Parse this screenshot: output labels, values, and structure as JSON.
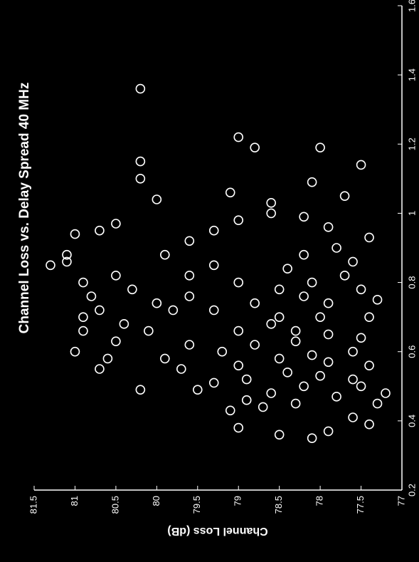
{
  "chart_data": {
    "type": "scatter",
    "title": "Channel Loss vs. Delay Spread 40 MHz",
    "y_label": "Channel Loss (dB)",
    "color": "#ffffff",
    "xlim": [
      0.2,
      1.6
    ],
    "xticks": [
      0.2,
      0.4,
      0.6,
      0.8,
      1,
      1.2,
      1.4,
      1.6
    ],
    "ylim": [
      77,
      81.5
    ],
    "yticks": [
      77,
      77.5,
      78,
      78.5,
      79,
      79.5,
      80,
      80.5,
      81,
      81.5
    ],
    "x": [
      1.36,
      1.15,
      1.1,
      1.22,
      1.19,
      1.19,
      1.14,
      1.09,
      1.05,
      1.06,
      1.03,
      1.04,
      0.97,
      0.95,
      0.94,
      0.88,
      0.86,
      0.85,
      0.82,
      0.8,
      0.78,
      0.76,
      0.74,
      0.72,
      0.7,
      0.68,
      0.66,
      0.63,
      0.6,
      0.58,
      0.55,
      0.55,
      0.49,
      0.49,
      0.43,
      0.38,
      0.36,
      0.35,
      0.37,
      0.39,
      0.41,
      0.45,
      0.48,
      0.5,
      0.52,
      0.56,
      0.6,
      0.64,
      0.7,
      0.75,
      0.78,
      0.82,
      0.86,
      0.9,
      0.93,
      0.96,
      0.99,
      1,
      0.98,
      0.95,
      0.92,
      0.88,
      0.85,
      0.82,
      0.8,
      0.78,
      0.76,
      0.74,
      0.72,
      0.7,
      0.68,
      0.66,
      0.65,
      0.63,
      0.62,
      0.6,
      0.59,
      0.58,
      0.57,
      0.56,
      0.54,
      0.53,
      0.52,
      0.51,
      0.5,
      0.48,
      0.47,
      0.46,
      0.45,
      0.44,
      0.66,
      0.7,
      0.74,
      0.76,
      0.8,
      0.84,
      0.88,
      0.62,
      0.58,
      0.66,
      0.72
    ],
    "y": [
      80.2,
      80.2,
      80.2,
      79,
      78.8,
      78,
      77.5,
      78.1,
      77.7,
      79.1,
      78.6,
      80,
      80.5,
      80.7,
      81,
      81.1,
      81.1,
      81.3,
      80.5,
      80.9,
      80.3,
      80.8,
      80,
      80.7,
      80.9,
      80.4,
      80.9,
      80.5,
      81,
      80.6,
      80.7,
      79.7,
      80.2,
      79.5,
      79.1,
      79,
      78.5,
      78.1,
      77.9,
      77.4,
      77.6,
      77.3,
      77.2,
      77.5,
      77.6,
      77.4,
      77.6,
      77.5,
      77.4,
      77.3,
      77.5,
      77.7,
      77.6,
      77.8,
      77.4,
      77.9,
      78.2,
      78.6,
      79,
      79.3,
      79.6,
      79.9,
      79.3,
      79.6,
      79,
      78.5,
      78.2,
      78.8,
      79.3,
      78,
      78.6,
      79,
      77.9,
      78.3,
      78.8,
      79.2,
      78.1,
      78.5,
      77.9,
      79,
      78.4,
      78,
      78.9,
      79.3,
      78.2,
      78.6,
      77.8,
      78.9,
      78.3,
      78.7,
      78.3,
      78.5,
      77.9,
      79.6,
      78.1,
      78.4,
      78.2,
      79.6,
      79.9,
      80.1,
      79.8
    ]
  }
}
